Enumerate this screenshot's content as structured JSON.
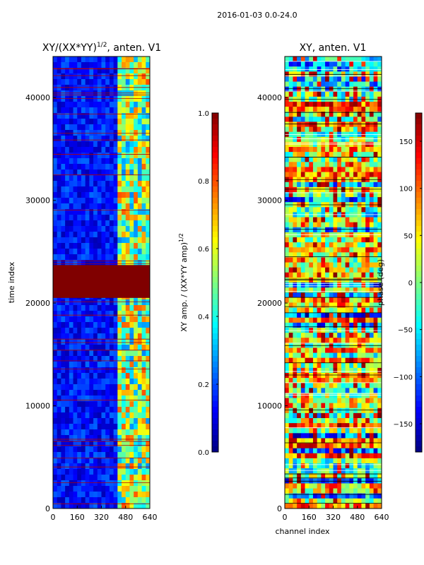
{
  "chart_data": [
    {
      "type": "heatmap",
      "title": "XY/(XX*YY)^1/2, anten. V1",
      "title_main": "XY/(XX*YY)",
      "title_exp": "1/2",
      "title_suffix": ", anten. V1",
      "suptitle": "2016-01-03 0.0-24.0",
      "xlabel": "",
      "ylabel": "time index",
      "xlim": [
        0,
        640
      ],
      "ylim": [
        0,
        44000
      ],
      "xticks": [
        "0",
        "160",
        "320",
        "480",
        "640"
      ],
      "yticks": [
        "0",
        "10000",
        "20000",
        "30000",
        "40000"
      ],
      "colorbar": {
        "range": [
          0.0,
          1.0
        ],
        "ticks": [
          "0.0",
          "0.2",
          "0.4",
          "0.6",
          "0.8",
          "1.0"
        ],
        "label": "XY amp. / (XX*YY amp)^1/2",
        "label_main": "XY amp. / (XX*YY amp)",
        "label_exp": "1/2",
        "colormap": "jet"
      },
      "saturated_time_bands": [
        {
          "from": 20500,
          "to": 23700,
          "value": 1.0
        }
      ],
      "bright_channel_range": [
        415,
        640
      ]
    },
    {
      "type": "heatmap",
      "title": "XY, anten. V1",
      "xlabel": "channel index",
      "ylabel": "",
      "xlim": [
        0,
        640
      ],
      "ylim": [
        0,
        44000
      ],
      "xticks": [
        "0",
        "160",
        "320",
        "480",
        "640"
      ],
      "yticks": [
        "0",
        "10000",
        "20000",
        "30000",
        "40000"
      ],
      "colorbar": {
        "range": [
          -180,
          180
        ],
        "ticks": [
          "−150",
          "−100",
          "−50",
          "0",
          "50",
          "100",
          "150"
        ],
        "label": "phase (deg)",
        "colormap": "jet"
      }
    }
  ]
}
